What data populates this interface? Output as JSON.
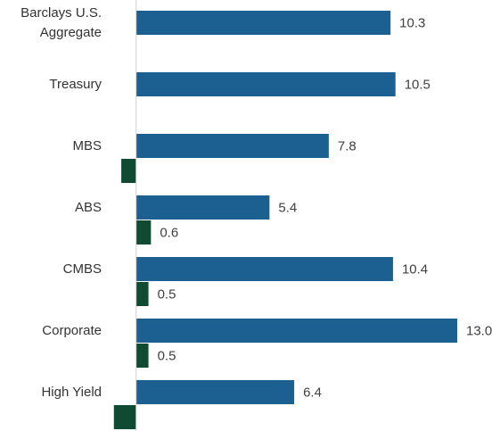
{
  "chart_data": {
    "type": "bar",
    "orientation": "horizontal",
    "categories": [
      "Barclays U.S. Aggregate",
      "Treasury",
      "MBS",
      "ABS",
      "CMBS",
      "Corporate",
      "High Yield"
    ],
    "series": [
      {
        "color": "#1c5f91",
        "values": [
          10.3,
          10.5,
          7.8,
          5.4,
          10.4,
          13.0,
          6.4
        ],
        "value_labels": [
          "10.3",
          "10.5",
          "7.8",
          "5.4",
          "10.4",
          "13.0",
          "6.4"
        ]
      },
      {
        "color": "#0f4a33",
        "values": [
          null,
          null,
          -0.6,
          0.6,
          0.5,
          0.5,
          -0.9
        ],
        "value_labels": [
          null,
          null,
          null,
          "0.6",
          "0.5",
          "0.5",
          null
        ]
      }
    ],
    "xlim": [
      -1,
      13
    ]
  }
}
